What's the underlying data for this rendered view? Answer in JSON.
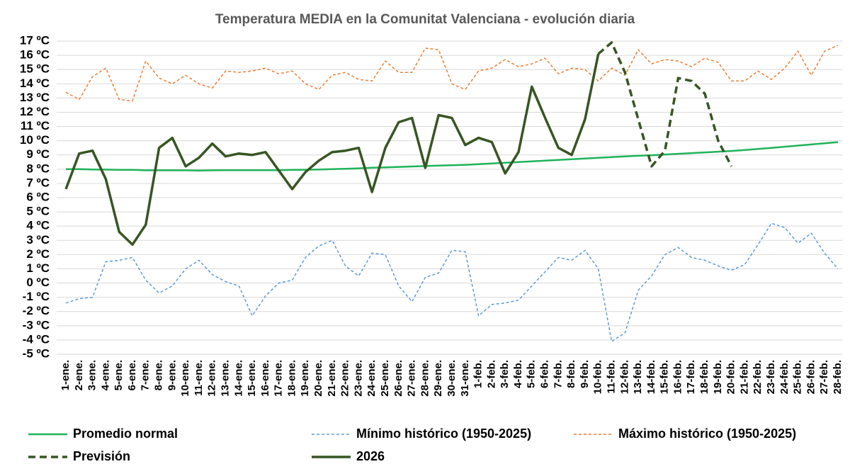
{
  "chart_data": {
    "type": "line",
    "title": "Temperatura MEDIA en la Comunitat Valenciana - evolución diaria",
    "categories": [
      "1-ene.",
      "2-ene.",
      "3-ene.",
      "4-ene.",
      "5-ene.",
      "6-ene.",
      "7-ene.",
      "8-ene.",
      "9-ene.",
      "10-ene.",
      "11-ene.",
      "12-ene.",
      "13-ene.",
      "14-ene.",
      "15-ene.",
      "16-ene.",
      "17-ene.",
      "18-ene.",
      "19-ene.",
      "20-ene.",
      "21-ene.",
      "22-ene.",
      "23-ene.",
      "24-ene.",
      "25-ene.",
      "26-ene.",
      "27-ene.",
      "28-ene.",
      "29-ene.",
      "30-ene.",
      "31-ene.",
      "1-feb.",
      "2-feb.",
      "3-feb.",
      "4-feb.",
      "5-feb.",
      "6-feb.",
      "7-feb.",
      "8-feb.",
      "9-feb.",
      "10-feb.",
      "11-feb.",
      "12-feb.",
      "13-feb.",
      "14-feb.",
      "15-feb.",
      "16-feb.",
      "17-feb.",
      "18-feb.",
      "19-feb.",
      "20-feb.",
      "21-feb.",
      "22-feb.",
      "23-feb.",
      "24-feb.",
      "25-feb.",
      "26-feb.",
      "27-feb.",
      "28-feb."
    ],
    "series": [
      {
        "name": "Promedio normal",
        "color": "#1fb35a",
        "dash": false,
        "width": 2.5,
        "values": [
          8.0,
          8.0,
          7.98,
          7.97,
          7.95,
          7.95,
          7.92,
          7.92,
          7.92,
          7.92,
          7.9,
          7.92,
          7.93,
          7.93,
          7.93,
          7.93,
          7.93,
          7.95,
          7.96,
          7.98,
          8.0,
          8.03,
          8.06,
          8.1,
          8.13,
          8.16,
          8.19,
          8.22,
          8.25,
          8.28,
          8.31,
          8.35,
          8.4,
          8.45,
          8.5,
          8.55,
          8.6,
          8.65,
          8.7,
          8.75,
          8.8,
          8.85,
          8.9,
          8.94,
          8.98,
          9.03,
          9.08,
          9.13,
          9.18,
          9.23,
          9.28,
          9.35,
          9.42,
          9.5,
          9.58,
          9.66,
          9.74,
          9.82,
          9.9
        ]
      },
      {
        "name": "Mínimo histórico (1950-2025)",
        "color": "#5b9bd5",
        "dash": true,
        "width": 1.5,
        "values": [
          -1.4,
          -1.1,
          -1.0,
          1.5,
          1.6,
          1.8,
          0.2,
          -0.7,
          -0.2,
          1.0,
          1.6,
          0.6,
          0.1,
          -0.2,
          -2.3,
          -0.9,
          0.0,
          0.2,
          1.8,
          2.6,
          3.0,
          1.2,
          0.5,
          2.1,
          2.0,
          -0.2,
          -1.3,
          0.4,
          0.7,
          2.3,
          2.2,
          -2.3,
          -1.5,
          -1.4,
          -1.2,
          -0.2,
          0.8,
          1.8,
          1.6,
          2.3,
          1.0,
          -4.1,
          -3.5,
          -0.5,
          0.5,
          2.0,
          2.5,
          1.8,
          1.6,
          1.2,
          0.9,
          1.3,
          2.7,
          4.2,
          3.9,
          2.8,
          3.5,
          2.1,
          1.0
        ]
      },
      {
        "name": "Máximo histórico (1950-2025)",
        "color": "#ed7d31",
        "dash": true,
        "width": 1.5,
        "values": [
          13.4,
          12.9,
          14.5,
          15.1,
          12.9,
          12.8,
          15.6,
          14.4,
          14.0,
          14.6,
          14.0,
          13.7,
          14.9,
          14.8,
          14.9,
          15.1,
          14.7,
          14.9,
          14.0,
          13.6,
          14.6,
          14.8,
          14.3,
          14.2,
          15.6,
          14.8,
          14.8,
          16.5,
          16.4,
          14.0,
          13.6,
          14.9,
          15.1,
          15.7,
          15.2,
          15.4,
          15.8,
          14.7,
          15.1,
          15.0,
          14.2,
          15.1,
          14.6,
          16.4,
          15.4,
          15.7,
          15.6,
          15.2,
          15.8,
          15.5,
          14.2,
          14.2,
          14.9,
          14.3,
          15.1,
          16.3,
          14.6,
          16.3,
          16.7
        ]
      },
      {
        "name": "Previsión",
        "color": "#375623",
        "dash": true,
        "width": 3.5,
        "values": [
          null,
          null,
          null,
          null,
          null,
          null,
          null,
          null,
          null,
          null,
          null,
          null,
          null,
          null,
          null,
          null,
          null,
          null,
          null,
          null,
          null,
          null,
          null,
          null,
          null,
          null,
          null,
          null,
          null,
          null,
          null,
          null,
          null,
          null,
          null,
          null,
          null,
          null,
          null,
          null,
          16.1,
          16.9,
          14.8,
          11.5,
          8.2,
          9.3,
          14.4,
          14.2,
          13.3,
          10.0,
          8.2,
          null,
          null,
          null,
          null,
          null,
          null,
          null,
          null
        ]
      },
      {
        "name": "2026",
        "color": "#375623",
        "dash": false,
        "width": 3.5,
        "values": [
          6.6,
          9.1,
          9.3,
          7.3,
          3.6,
          2.7,
          4.1,
          9.5,
          10.2,
          8.2,
          8.8,
          9.8,
          8.9,
          9.1,
          9.0,
          9.2,
          7.9,
          6.6,
          7.8,
          8.6,
          9.2,
          9.3,
          9.5,
          6.4,
          9.5,
          11.3,
          11.6,
          8.1,
          11.8,
          11.6,
          9.7,
          10.2,
          9.9,
          7.7,
          9.2,
          13.8,
          11.6,
          9.5,
          9.0,
          11.5,
          16.1,
          null,
          null,
          null,
          null,
          null,
          null,
          null,
          null,
          null,
          null,
          null,
          null,
          null,
          null,
          null,
          null,
          null,
          null
        ]
      }
    ],
    "ylim": [
      -5,
      17
    ],
    "yticks": [
      {
        "value": -5,
        "label": "-5 ºC"
      },
      {
        "value": -4,
        "label": "-4 ºC"
      },
      {
        "value": -3,
        "label": "-3 ºC"
      },
      {
        "value": -2,
        "label": "-2 ºC"
      },
      {
        "value": -1,
        "label": "-1 ºC"
      },
      {
        "value": 0,
        "label": "0 ºC"
      },
      {
        "value": 1,
        "label": "1 ºC"
      },
      {
        "value": 2,
        "label": "2 ºC"
      },
      {
        "value": 3,
        "label": "3 ºC"
      },
      {
        "value": 4,
        "label": "4 ºC"
      },
      {
        "value": 5,
        "label": "5 ºC"
      },
      {
        "value": 6,
        "label": "6 ºC"
      },
      {
        "value": 7,
        "label": "7 ºC"
      },
      {
        "value": 8,
        "label": "8 ºC"
      },
      {
        "value": 9,
        "label": "9 ºC"
      },
      {
        "value": 10,
        "label": "10 ºC"
      },
      {
        "value": 11,
        "label": "11 ºC"
      },
      {
        "value": 12,
        "label": "12 ºC"
      },
      {
        "value": 13,
        "label": "13 ºC"
      },
      {
        "value": 14,
        "label": "14 ºC"
      },
      {
        "value": 15,
        "label": "15 ºC"
      },
      {
        "value": 16,
        "label": "16 ºC"
      },
      {
        "value": 17,
        "label": "17 ºC"
      }
    ],
    "grid": true
  }
}
